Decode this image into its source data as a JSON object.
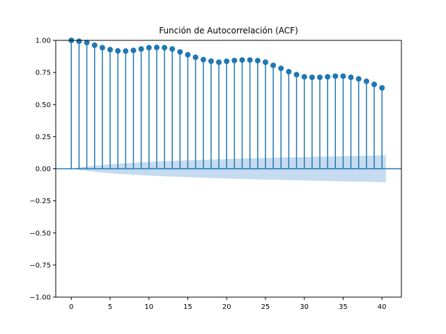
{
  "chart_data": {
    "type": "stem",
    "title": "Función de Autocorrelación (ACF)",
    "xlabel": "",
    "ylabel": "",
    "xlim": [
      -2,
      42.5
    ],
    "ylim": [
      -1.0,
      1.0
    ],
    "x_ticks": [
      0,
      5,
      10,
      15,
      20,
      25,
      30,
      35,
      40
    ],
    "x_tick_labels": [
      "0",
      "5",
      "10",
      "15",
      "20",
      "25",
      "30",
      "35",
      "40"
    ],
    "y_ticks": [
      -1.0,
      -0.75,
      -0.5,
      -0.25,
      0.0,
      0.25,
      0.5,
      0.75,
      1.0
    ],
    "y_tick_labels": [
      "−1.00",
      "−0.75",
      "−0.50",
      "−0.25",
      "0.00",
      "0.25",
      "0.50",
      "0.75",
      "1.00"
    ],
    "grid": false,
    "legend": "none",
    "colors": {
      "stem": "#1f77b4",
      "confidence_band": "#c6dbef",
      "axis": "#000000"
    },
    "lags": [
      0,
      1,
      2,
      3,
      4,
      5,
      6,
      7,
      8,
      9,
      10,
      11,
      12,
      13,
      14,
      15,
      16,
      17,
      18,
      19,
      20,
      21,
      22,
      23,
      24,
      25,
      26,
      27,
      28,
      29,
      30,
      31,
      32,
      33,
      34,
      35,
      36,
      37,
      38,
      39,
      40
    ],
    "acf": [
      1.0,
      0.993,
      0.983,
      0.962,
      0.943,
      0.928,
      0.918,
      0.917,
      0.922,
      0.933,
      0.943,
      0.945,
      0.943,
      0.933,
      0.91,
      0.888,
      0.868,
      0.85,
      0.838,
      0.83,
      0.837,
      0.843,
      0.847,
      0.847,
      0.842,
      0.83,
      0.805,
      0.782,
      0.756,
      0.733,
      0.716,
      0.712,
      0.712,
      0.716,
      0.721,
      0.721,
      0.712,
      0.7,
      0.681,
      0.657,
      0.63
    ],
    "confidence_band": {
      "x": [
        0,
        1,
        2,
        3,
        4,
        5,
        6,
        7,
        8,
        9,
        10,
        11,
        12,
        13,
        14,
        15,
        16,
        17,
        18,
        19,
        20,
        21,
        22,
        23,
        24,
        25,
        26,
        27,
        28,
        29,
        30,
        31,
        32,
        33,
        34,
        35,
        36,
        37,
        38,
        39,
        40
      ],
      "upper": [
        0.0,
        0.01,
        0.017,
        0.024,
        0.03,
        0.035,
        0.039,
        0.043,
        0.047,
        0.05,
        0.053,
        0.056,
        0.059,
        0.061,
        0.064,
        0.066,
        0.068,
        0.07,
        0.072,
        0.074,
        0.076,
        0.078,
        0.079,
        0.081,
        0.083,
        0.084,
        0.086,
        0.087,
        0.089,
        0.09,
        0.091,
        0.093,
        0.094,
        0.095,
        0.097,
        0.098,
        0.099,
        0.1,
        0.101,
        0.103,
        0.104
      ]
    }
  }
}
